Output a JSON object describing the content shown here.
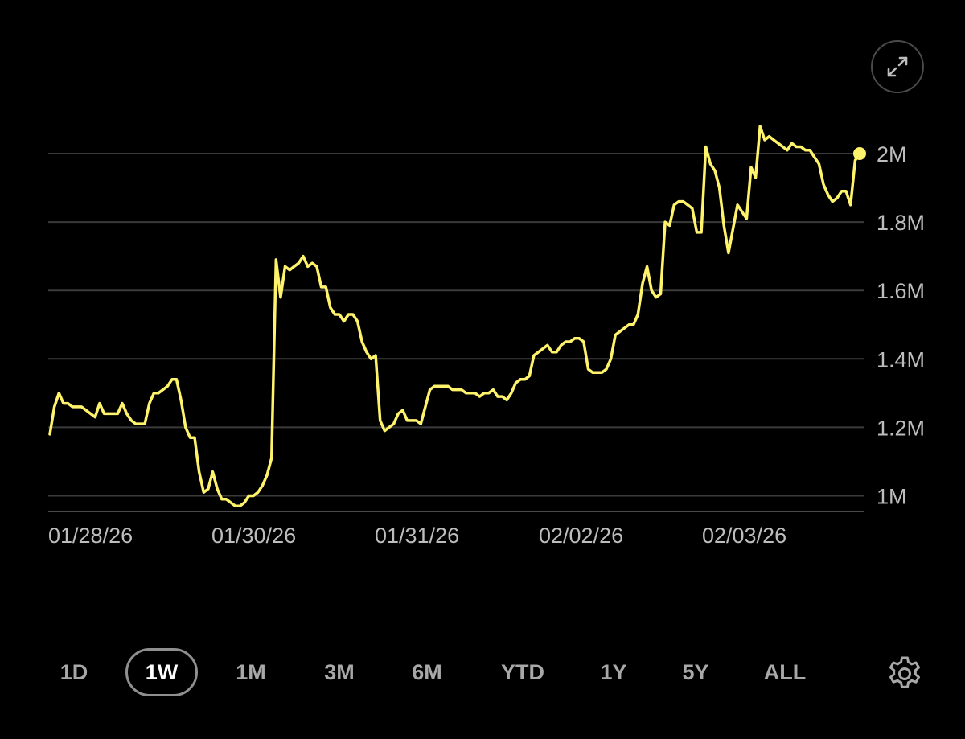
{
  "colors": {
    "background": "#000000",
    "line": "#fff36b",
    "grid": "#3a3a3a",
    "tick_text": "#bdbdbd",
    "range_inactive": "#a8a8a8",
    "range_active": "#ffffff"
  },
  "expand_button": {
    "icon": "expand-icon"
  },
  "range_selector": {
    "options": [
      "1D",
      "1W",
      "1M",
      "3M",
      "6M",
      "YTD",
      "1Y",
      "5Y",
      "ALL"
    ],
    "selected": "1W"
  },
  "settings_button": {
    "icon": "gear-icon"
  },
  "chart_data": {
    "type": "line",
    "title": "",
    "xlabel": "",
    "ylabel": "",
    "x_tick_labels": [
      "01/28/26",
      "01/30/26",
      "01/31/26",
      "02/02/26",
      "02/03/26"
    ],
    "y_tick_labels": [
      "1M",
      "1.2M",
      "1.4M",
      "1.6M",
      "1.8M",
      "2M"
    ],
    "y_ticks": [
      1000000,
      1200000,
      1400000,
      1600000,
      1800000,
      2000000
    ],
    "ylim": [
      955000,
      2080000
    ],
    "grid": true,
    "legend": "none",
    "last_point_marker": true,
    "series": [
      {
        "values": [
          1.18,
          1.26,
          1.3,
          1.27,
          1.27,
          1.26,
          1.26,
          1.26,
          1.25,
          1.24,
          1.23,
          1.27,
          1.24,
          1.24,
          1.24,
          1.24,
          1.27,
          1.24,
          1.22,
          1.21,
          1.21,
          1.21,
          1.27,
          1.3,
          1.3,
          1.31,
          1.32,
          1.34,
          1.34,
          1.28,
          1.2,
          1.17,
          1.17,
          1.07,
          1.01,
          1.02,
          1.07,
          1.02,
          0.99,
          0.99,
          0.98,
          0.97,
          0.97,
          0.98,
          1.0,
          1.0,
          1.01,
          1.03,
          1.06,
          1.11,
          1.69,
          1.58,
          1.67,
          1.66,
          1.67,
          1.68,
          1.7,
          1.67,
          1.68,
          1.67,
          1.61,
          1.61,
          1.55,
          1.53,
          1.53,
          1.51,
          1.53,
          1.53,
          1.51,
          1.45,
          1.42,
          1.4,
          1.41,
          1.22,
          1.19,
          1.2,
          1.21,
          1.24,
          1.25,
          1.22,
          1.22,
          1.22,
          1.21,
          1.26,
          1.31,
          1.32,
          1.32,
          1.32,
          1.32,
          1.31,
          1.31,
          1.31,
          1.3,
          1.3,
          1.3,
          1.29,
          1.3,
          1.3,
          1.31,
          1.29,
          1.29,
          1.28,
          1.3,
          1.33,
          1.34,
          1.34,
          1.35,
          1.41,
          1.42,
          1.43,
          1.44,
          1.42,
          1.42,
          1.44,
          1.45,
          1.45,
          1.46,
          1.46,
          1.45,
          1.37,
          1.36,
          1.36,
          1.36,
          1.37,
          1.4,
          1.47,
          1.48,
          1.49,
          1.5,
          1.5,
          1.53,
          1.62,
          1.67,
          1.6,
          1.58,
          1.59,
          1.8,
          1.79,
          1.85,
          1.86,
          1.86,
          1.85,
          1.84,
          1.77,
          1.77,
          2.02,
          1.97,
          1.95,
          1.9,
          1.79,
          1.71,
          1.78,
          1.85,
          1.83,
          1.81,
          1.96,
          1.93,
          2.08,
          2.04,
          2.05,
          2.04,
          2.03,
          2.02,
          2.01,
          2.03,
          2.02,
          2.02,
          2.01,
          2.01,
          1.99,
          1.97,
          1.91,
          1.88,
          1.86,
          1.87,
          1.89,
          1.89,
          1.85,
          1.98,
          2.0
        ]
      }
    ]
  }
}
